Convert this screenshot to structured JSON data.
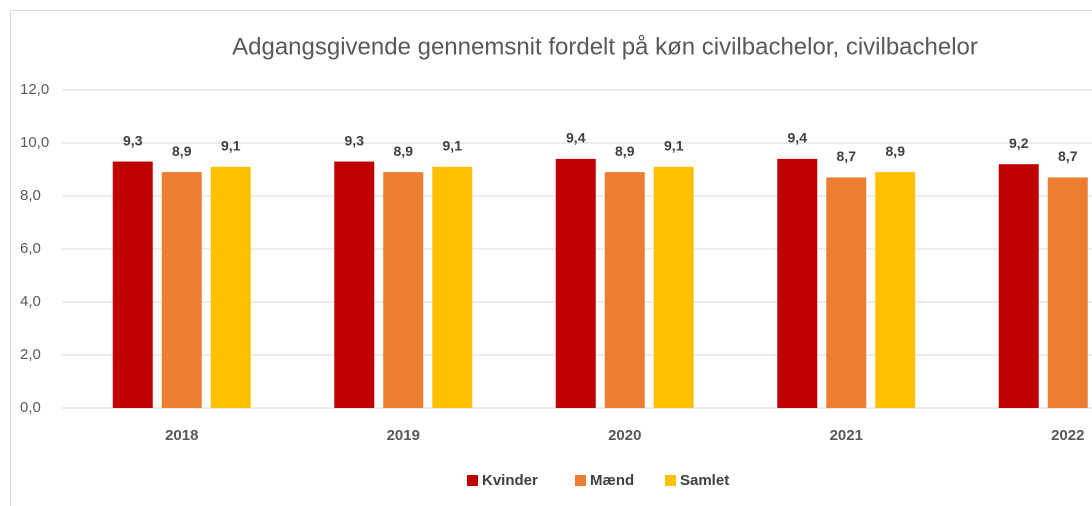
{
  "chart_data": {
    "type": "bar",
    "title": "Adgangsgivende gennemsnit fordelt på køn  civilbachelor, civilbachelor",
    "categories": [
      "2018",
      "2019",
      "2020",
      "2021",
      "2022"
    ],
    "series": [
      {
        "name": "Kvinder",
        "color": "#c00000",
        "values": [
          9.3,
          9.3,
          9.4,
          9.4,
          9.2
        ],
        "value_labels": [
          "9,3",
          "9,3",
          "9,4",
          "9,4",
          "9,2"
        ]
      },
      {
        "name": "Mænd",
        "color": "#ed7d31",
        "values": [
          8.9,
          8.9,
          8.9,
          8.7,
          8.7
        ],
        "value_labels": [
          "8,9",
          "8,9",
          "8,9",
          "8,7",
          "8,7"
        ]
      },
      {
        "name": "Samlet",
        "color": "#ffc000",
        "values": [
          9.1,
          9.1,
          9.1,
          8.9,
          null
        ],
        "value_labels": [
          "9,1",
          "9,1",
          "9,1",
          "8,9",
          null
        ]
      }
    ],
    "ylim": [
      0,
      12
    ],
    "yticks": [
      {
        "value": 0,
        "label": "0,0"
      },
      {
        "value": 2,
        "label": "2,0"
      },
      {
        "value": 4,
        "label": "4,0"
      },
      {
        "value": 6,
        "label": "6,0"
      },
      {
        "value": 8,
        "label": "8,0"
      },
      {
        "value": 10,
        "label": "10,0"
      },
      {
        "value": 12,
        "label": "12,0"
      }
    ],
    "grid": true
  }
}
